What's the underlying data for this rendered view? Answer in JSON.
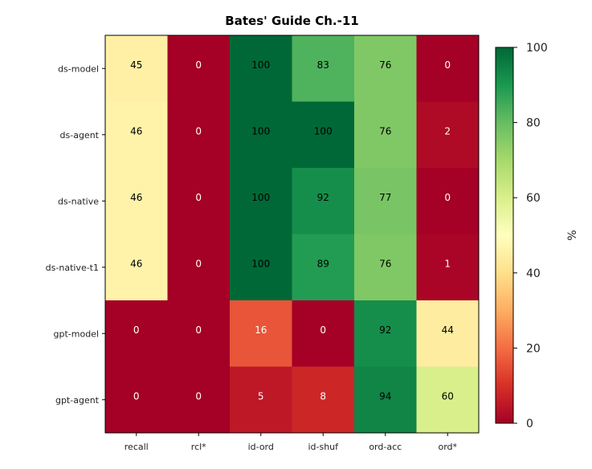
{
  "chart_data": {
    "type": "heatmap",
    "title": "Bates' Guide Ch.-11",
    "rows": [
      "ds-model",
      "ds-agent",
      "ds-native",
      "ds-native-t1",
      "gpt-model",
      "gpt-agent"
    ],
    "columns": [
      "recall",
      "rcl*",
      "id-ord",
      "id-shuf",
      "ord-acc",
      "ord*"
    ],
    "values": [
      [
        45,
        0,
        100,
        83,
        76,
        0
      ],
      [
        46,
        0,
        100,
        100,
        76,
        2
      ],
      [
        46,
        0,
        100,
        92,
        77,
        0
      ],
      [
        46,
        0,
        100,
        89,
        76,
        1
      ],
      [
        0,
        0,
        16,
        0,
        92,
        44
      ],
      [
        0,
        0,
        5,
        8,
        94,
        60
      ]
    ],
    "colormap": "RdYlGn",
    "vmin": 0,
    "vmax": 100,
    "colorbar": {
      "label": "%",
      "ticks": [
        "0",
        "20",
        "40",
        "60",
        "80",
        "100"
      ]
    }
  }
}
